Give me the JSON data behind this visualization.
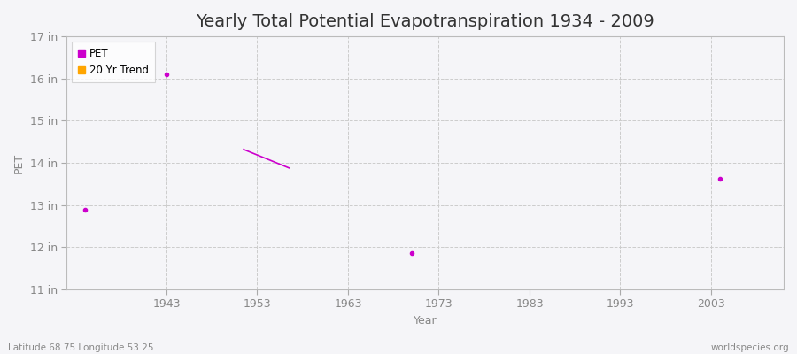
{
  "title": "Yearly Total Potential Evapotranspiration 1934 - 2009",
  "xlabel": "Year",
  "ylabel": "PET",
  "xlim": [
    1932,
    2011
  ],
  "ylim": [
    11,
    17
  ],
  "yticks": [
    11,
    12,
    13,
    14,
    15,
    16,
    17
  ],
  "ytick_labels": [
    "11 in",
    "12 in",
    "13 in",
    "14 in",
    "15 in",
    "16 in",
    "17 in"
  ],
  "xticks": [
    1943,
    1953,
    1963,
    1973,
    1983,
    1993,
    2003
  ],
  "background_color": "#f5f5f8",
  "plot_bg_color": "#f5f5f8",
  "pet_color": "#cc00cc",
  "trend_color": "#ffa500",
  "trend_line_color": "#cc00cc",
  "pet_points": [
    [
      1934,
      12.88
    ],
    [
      1943,
      16.1
    ],
    [
      1970,
      11.87
    ],
    [
      2004,
      13.63
    ]
  ],
  "trend_line": [
    [
      1951.5,
      14.32
    ],
    [
      1956.5,
      13.88
    ]
  ],
  "grid_color": "#cccccc",
  "grid_linestyle": "--",
  "title_fontsize": 14,
  "axis_label_fontsize": 9,
  "tick_fontsize": 9,
  "tick_color": "#888888",
  "footer_left": "Latitude 68.75 Longitude 53.25",
  "footer_right": "worldspecies.org"
}
